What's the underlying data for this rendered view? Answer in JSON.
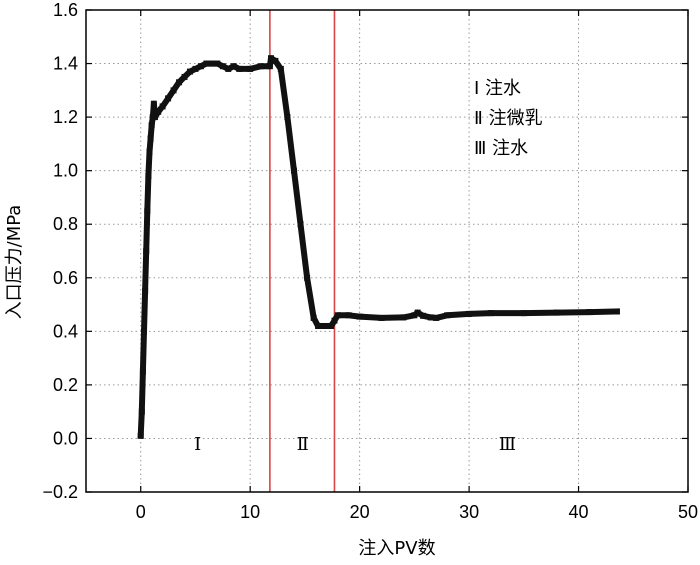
{
  "chart_data": {
    "type": "line",
    "title": "",
    "xlabel": "注入PV数",
    "ylabel": "入口压力/MPa",
    "xlim": [
      -5,
      50
    ],
    "ylim": [
      -0.2,
      1.6
    ],
    "xticks": [
      "0",
      "10",
      "20",
      "30",
      "40",
      "50"
    ],
    "yticks": [
      "-0.2",
      "0.0",
      "0.2",
      "0.4",
      "0.6",
      "0.8",
      "1.0",
      "1.2",
      "1.4",
      "1.6"
    ],
    "grid": true,
    "legend_position": "top-right",
    "legend": [
      "Ⅰ  注水",
      "Ⅱ  注微乳",
      "Ⅲ  注水"
    ],
    "region_labels": [
      "Ⅰ",
      "Ⅱ",
      "Ⅲ"
    ],
    "region_label_x": [
      5.2,
      14.8,
      33.5
    ],
    "region_label_y": -0.02,
    "vertical_lines_x": [
      11.8,
      17.7
    ],
    "vertical_line_color": "#d9464a",
    "line_color": "#111111",
    "series": [
      {
        "values": [
          [
            0.0,
            0.01
          ],
          [
            0.1,
            0.1
          ],
          [
            0.2,
            0.25
          ],
          [
            0.3,
            0.4
          ],
          [
            0.4,
            0.55
          ],
          [
            0.5,
            0.7
          ],
          [
            0.6,
            0.85
          ],
          [
            0.7,
            0.98
          ],
          [
            0.8,
            1.07
          ],
          [
            0.9,
            1.12
          ],
          [
            1.0,
            1.17
          ],
          [
            1.1,
            1.2
          ],
          [
            1.2,
            1.25
          ],
          [
            1.3,
            1.2
          ],
          [
            1.6,
            1.22
          ],
          [
            2.0,
            1.24
          ],
          [
            2.5,
            1.27
          ],
          [
            3.0,
            1.3
          ],
          [
            3.5,
            1.33
          ],
          [
            4.0,
            1.35
          ],
          [
            4.5,
            1.37
          ],
          [
            5.0,
            1.38
          ],
          [
            5.5,
            1.39
          ],
          [
            6.0,
            1.4
          ],
          [
            6.5,
            1.4
          ],
          [
            7.0,
            1.4
          ],
          [
            7.5,
            1.39
          ],
          [
            8.0,
            1.38
          ],
          [
            8.5,
            1.39
          ],
          [
            9.0,
            1.38
          ],
          [
            10.0,
            1.38
          ],
          [
            11.0,
            1.39
          ],
          [
            11.8,
            1.39
          ],
          [
            11.9,
            1.42
          ],
          [
            12.3,
            1.41
          ],
          [
            12.8,
            1.38
          ],
          [
            13.4,
            1.2
          ],
          [
            14.0,
            1.0
          ],
          [
            14.6,
            0.8
          ],
          [
            15.2,
            0.6
          ],
          [
            15.8,
            0.45
          ],
          [
            16.2,
            0.42
          ],
          [
            17.0,
            0.42
          ],
          [
            17.4,
            0.42
          ],
          [
            17.7,
            0.44
          ],
          [
            18.0,
            0.46
          ],
          [
            19.0,
            0.46
          ],
          [
            20.0,
            0.455
          ],
          [
            22.0,
            0.45
          ],
          [
            24.0,
            0.452
          ],
          [
            25.0,
            0.46
          ],
          [
            25.3,
            0.47
          ],
          [
            25.8,
            0.458
          ],
          [
            26.5,
            0.452
          ],
          [
            27.0,
            0.45
          ],
          [
            28.0,
            0.46
          ],
          [
            30.0,
            0.465
          ],
          [
            32.0,
            0.468
          ],
          [
            35.0,
            0.468
          ],
          [
            38.0,
            0.47
          ],
          [
            41.0,
            0.472
          ],
          [
            43.5,
            0.474
          ]
        ]
      }
    ]
  }
}
